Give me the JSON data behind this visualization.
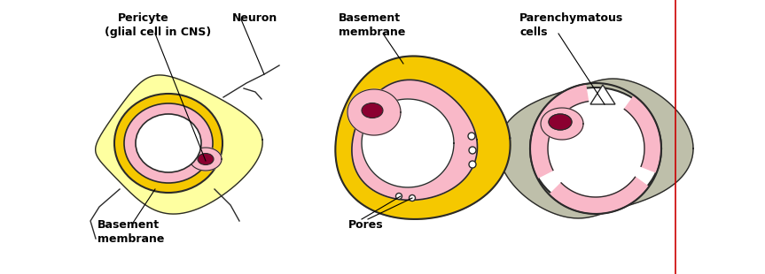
{
  "bg_color": "#ffffff",
  "yellow_bg": "#FEFFA0",
  "gray_bg": "#BEBFAA",
  "pink_light": "#F9B8C8",
  "dark_red": "#8B0030",
  "yellow_ring": "#F5C800",
  "outline_color": "#2a2a2a",
  "labels": {
    "cap_top1": "Pericyte",
    "cap_top2": "(glial cell in CNS)",
    "cap_top3": "Neuron",
    "cap_bot1": "Basement",
    "cap_bot2": "membrane",
    "ven_top1": "Basement",
    "ven_top2": "membrane",
    "ven_bot": "Pores",
    "sin_top1": "Parenchymatous",
    "sin_top2": "cells"
  },
  "divider_color": "#CC0000",
  "figsize": [
    8.63,
    3.1
  ],
  "dpi": 100
}
